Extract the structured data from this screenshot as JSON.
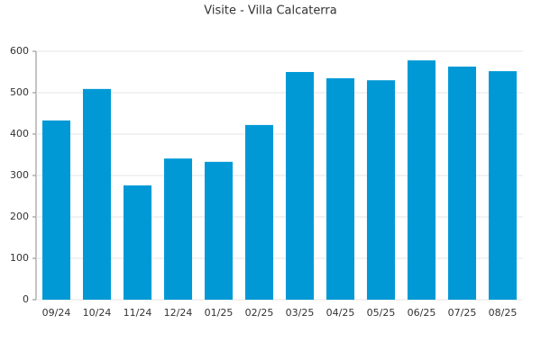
{
  "chart_data": {
    "type": "bar",
    "title": "Visite - Villa Calcaterra",
    "categories": [
      "09/24",
      "10/24",
      "11/24",
      "12/24",
      "01/25",
      "02/25",
      "03/25",
      "04/25",
      "05/25",
      "06/25",
      "07/25",
      "08/25"
    ],
    "values": [
      433,
      509,
      276,
      341,
      333,
      422,
      550,
      535,
      530,
      578,
      563,
      552
    ],
    "color": "#0099d6",
    "ylim": [
      0,
      600
    ],
    "yticks": [
      0,
      100,
      200,
      300,
      400,
      500,
      600
    ],
    "grid": true
  }
}
